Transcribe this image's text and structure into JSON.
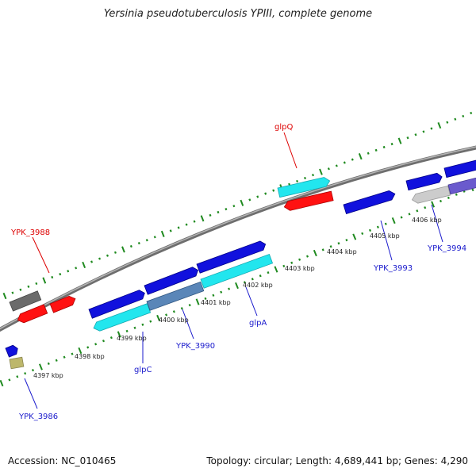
{
  "header": {
    "title": "Yersinia pseudotuberculosis YPIII, complete genome"
  },
  "footer": {
    "accession": "Accession: NC_010465",
    "summary": "Topology: circular; Length: 4,689,441 bp; Genes: 4,290"
  },
  "map": {
    "ticks": [
      "4397 kbp",
      "4398 kbp",
      "4399 kbp",
      "4400 kbp",
      "4401 kbp",
      "4402 kbp",
      "4403 kbp",
      "4404 kbp",
      "4405 kbp",
      "4406 kbp"
    ],
    "labels": {
      "glpQ": "glpQ",
      "YPK_3988": "YPK_3988",
      "YPK_3986": "YPK_3986",
      "glpC": "glpC",
      "YPK_3990": "YPK_3990",
      "glpA": "glpA",
      "YPK_3993": "YPK_3993",
      "YPK_3994": "YPK_3994"
    },
    "colors": {
      "backbone": "#8a8a8a",
      "tick_green": "#1f8a1f",
      "red_gene": "#ff1111",
      "blue_gene": "#1111dd",
      "cyan_gene": "#22e6ee",
      "steel_gene": "#5a86b8",
      "grey_gene": "#666666",
      "light_grey_gene": "#cccccc",
      "purple_gene": "#6a5acd",
      "khaki_gene": "#bdb76b",
      "label_red": "#dd0000",
      "label_blue": "#1a1acc"
    }
  }
}
